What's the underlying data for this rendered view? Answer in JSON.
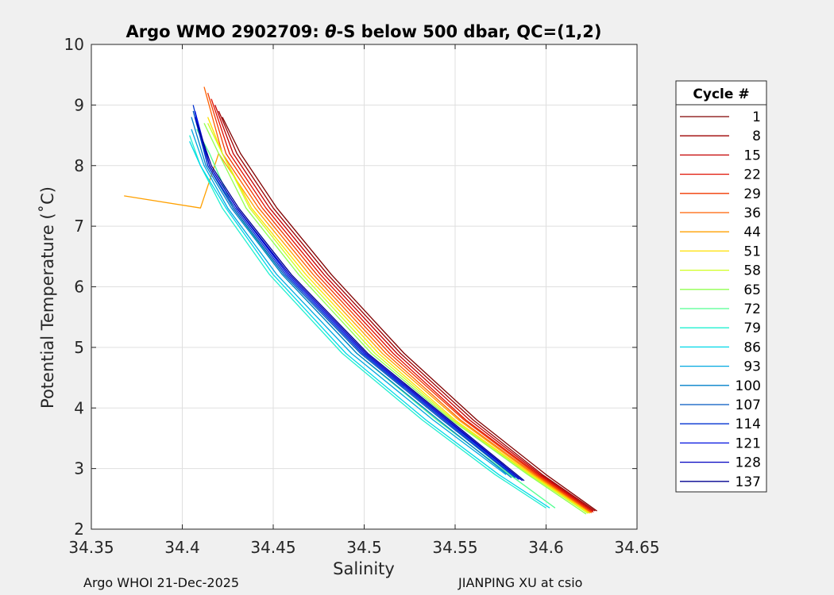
{
  "chart_data": {
    "type": "line",
    "title_prefix": "Argo WMO 2902709: ",
    "title_theta": "θ",
    "title_suffix": "-S below 500 dbar,  QC=(1,2)",
    "xlabel": "Salinity",
    "ylabel": "Potential Temperature (˚C)",
    "xlim": [
      34.35,
      34.65
    ],
    "ylim": [
      2,
      10
    ],
    "xticks": [
      "34.35",
      "34.4",
      "34.45",
      "34.5",
      "34.55",
      "34.6",
      "34.65"
    ],
    "yticks": [
      "2",
      "3",
      "4",
      "5",
      "6",
      "7",
      "8",
      "9",
      "10"
    ],
    "grid": true,
    "legend_title": "Cycle #",
    "legend_position": "right",
    "series": [
      {
        "name": "1",
        "color": "#800000",
        "x": [
          34.422,
          34.432,
          34.452,
          34.482,
          34.522,
          34.562,
          34.6,
          34.628
        ],
        "y": [
          8.8,
          8.2,
          7.3,
          6.2,
          4.9,
          3.8,
          2.9,
          2.3
        ]
      },
      {
        "name": "8",
        "color": "#9e0000",
        "x": [
          34.42,
          34.43,
          34.45,
          34.48,
          34.52,
          34.56,
          34.598,
          34.627
        ],
        "y": [
          8.9,
          8.2,
          7.3,
          6.2,
          4.9,
          3.8,
          2.9,
          2.3
        ]
      },
      {
        "name": "15",
        "color": "#c40000",
        "x": [
          34.418,
          34.428,
          34.448,
          34.478,
          34.518,
          34.558,
          34.597,
          34.626
        ],
        "y": [
          9.0,
          8.2,
          7.3,
          6.2,
          4.9,
          3.8,
          2.9,
          2.3
        ]
      },
      {
        "name": "22",
        "color": "#e01000",
        "x": [
          34.416,
          34.426,
          34.446,
          34.476,
          34.516,
          34.556,
          34.596,
          34.626
        ],
        "y": [
          9.1,
          8.2,
          7.3,
          6.2,
          4.9,
          3.8,
          2.9,
          2.28
        ]
      },
      {
        "name": "29",
        "color": "#f03800",
        "x": [
          34.414,
          34.424,
          34.444,
          34.474,
          34.514,
          34.555,
          34.595,
          34.625
        ],
        "y": [
          9.2,
          8.2,
          7.3,
          6.2,
          4.9,
          3.8,
          2.9,
          2.28
        ]
      },
      {
        "name": "36",
        "color": "#ff6000",
        "x": [
          34.412,
          34.422,
          34.442,
          34.472,
          34.512,
          34.553,
          34.594,
          34.625
        ],
        "y": [
          9.3,
          8.2,
          7.3,
          6.2,
          4.9,
          3.8,
          2.9,
          2.27
        ]
      },
      {
        "name": "44",
        "color": "#ffa000",
        "x": [
          34.368,
          34.41,
          34.42,
          34.44,
          34.47,
          34.51,
          34.552,
          34.593,
          34.624
        ],
        "y": [
          7.5,
          7.3,
          8.2,
          7.3,
          6.2,
          4.9,
          3.8,
          2.9,
          2.27
        ]
      },
      {
        "name": "51",
        "color": "#ffe000",
        "x": [
          34.414,
          34.422,
          34.438,
          34.468,
          34.508,
          34.55,
          34.592,
          34.624
        ],
        "y": [
          8.8,
          8.2,
          7.3,
          6.2,
          4.9,
          3.8,
          2.9,
          2.26
        ]
      },
      {
        "name": "58",
        "color": "#d0ff20",
        "x": [
          34.414,
          34.422,
          34.437,
          34.466,
          34.506,
          34.549,
          34.591,
          34.623
        ],
        "y": [
          8.7,
          8.2,
          7.3,
          6.2,
          4.9,
          3.8,
          2.9,
          2.26
        ]
      },
      {
        "name": "65",
        "color": "#90ff50",
        "x": [
          34.412,
          34.42,
          34.435,
          34.464,
          34.504,
          34.548,
          34.59,
          34.622
        ],
        "y": [
          8.7,
          8.2,
          7.3,
          6.2,
          4.9,
          3.8,
          2.9,
          2.25
        ]
      },
      {
        "name": "72",
        "color": "#50ff90",
        "x": [
          34.408,
          34.415,
          34.428,
          34.455,
          34.496,
          34.54,
          34.58,
          34.605
        ],
        "y": [
          8.6,
          8.2,
          7.3,
          6.2,
          4.9,
          3.8,
          2.9,
          2.35
        ]
      },
      {
        "name": "79",
        "color": "#20f0d0",
        "x": [
          34.404,
          34.41,
          34.422,
          34.448,
          34.488,
          34.532,
          34.572,
          34.6
        ],
        "y": [
          8.5,
          8.0,
          7.3,
          6.2,
          4.9,
          3.8,
          2.9,
          2.35
        ]
      },
      {
        "name": "86",
        "color": "#00d8e8",
        "x": [
          34.404,
          34.41,
          34.424,
          34.45,
          34.49,
          34.534,
          34.574,
          34.602
        ],
        "y": [
          8.4,
          8.0,
          7.3,
          6.2,
          4.9,
          3.8,
          2.9,
          2.35
        ]
      },
      {
        "name": "93",
        "color": "#00a8e0",
        "x": [
          34.405,
          34.412,
          34.425,
          34.452,
          34.493,
          34.538,
          34.578
        ],
        "y": [
          8.6,
          8.0,
          7.3,
          6.2,
          4.9,
          3.8,
          2.9
        ]
      },
      {
        "name": "100",
        "color": "#0080c8",
        "x": [
          34.405,
          34.413,
          34.427,
          34.455,
          34.496,
          34.541,
          34.581
        ],
        "y": [
          8.8,
          8.0,
          7.3,
          6.2,
          4.9,
          3.8,
          2.85
        ]
      },
      {
        "name": "107",
        "color": "#0058c0",
        "x": [
          34.406,
          34.414,
          34.428,
          34.456,
          34.498,
          34.543,
          34.583
        ],
        "y": [
          8.9,
          8.0,
          7.3,
          6.2,
          4.9,
          3.8,
          2.85
        ]
      },
      {
        "name": "114",
        "color": "#0030d0",
        "x": [
          34.406,
          34.414,
          34.429,
          34.457,
          34.499,
          34.544,
          34.585
        ],
        "y": [
          9.0,
          8.0,
          7.3,
          6.2,
          4.9,
          3.8,
          2.82
        ]
      },
      {
        "name": "121",
        "color": "#0010e0",
        "x": [
          34.407,
          34.415,
          34.43,
          34.458,
          34.5,
          34.545,
          34.586
        ],
        "y": [
          8.9,
          8.0,
          7.3,
          6.2,
          4.9,
          3.8,
          2.82
        ]
      },
      {
        "name": "128",
        "color": "#0000c0",
        "x": [
          34.407,
          34.415,
          34.43,
          34.459,
          34.501,
          34.546,
          34.587
        ],
        "y": [
          8.8,
          8.0,
          7.3,
          6.2,
          4.9,
          3.8,
          2.8
        ]
      },
      {
        "name": "137",
        "color": "#000090",
        "x": [
          34.408,
          34.416,
          34.431,
          34.46,
          34.502,
          34.547,
          34.588
        ],
        "y": [
          8.7,
          8.0,
          7.3,
          6.2,
          4.9,
          3.8,
          2.8
        ]
      }
    ]
  },
  "footer": {
    "left": "Argo WHOI 21-Dec-2025",
    "right": "JIANPING XU at csio"
  }
}
